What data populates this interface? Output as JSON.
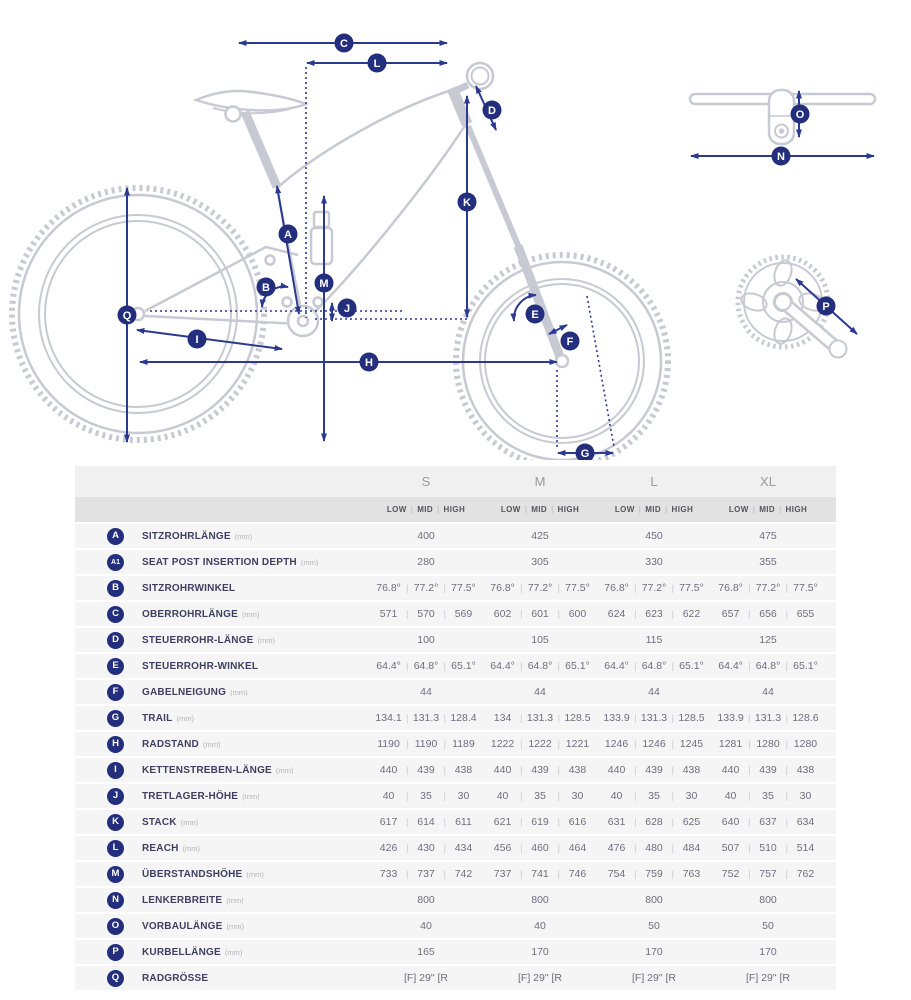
{
  "diagram": {
    "badge_letters": {
      "A": "A",
      "B": "B",
      "C": "C",
      "D": "D",
      "E": "E",
      "F": "F",
      "G": "G",
      "H": "H",
      "I": "I",
      "J": "J",
      "K": "K",
      "L": "L",
      "M": "M",
      "N": "N",
      "O": "O",
      "P": "P",
      "Q": "Q"
    },
    "colors": {
      "arrow": "#2b3990",
      "badge": "#232e7c",
      "frame": "#c7c9d3"
    }
  },
  "table": {
    "sizes": [
      "S",
      "M",
      "L",
      "XL"
    ],
    "sub_headers": [
      "LOW",
      "MID",
      "HIGH"
    ],
    "rows": [
      {
        "id": "A",
        "label": "SITZROHRLÄNGE",
        "unit": "(mm)",
        "values": [
          [
            "400"
          ],
          [
            "425"
          ],
          [
            "450"
          ],
          [
            "475"
          ]
        ]
      },
      {
        "id": "A1",
        "label": "SEAT POST INSERTION DEPTH",
        "unit": "(mm)",
        "values": [
          [
            "280"
          ],
          [
            "305"
          ],
          [
            "330"
          ],
          [
            "355"
          ]
        ]
      },
      {
        "id": "B",
        "label": "SITZROHRWINKEL",
        "unit": "",
        "values": [
          [
            "76.8°",
            "77.2°",
            "77.5°"
          ],
          [
            "76.8°",
            "77.2°",
            "77.5°"
          ],
          [
            "76.8°",
            "77.2°",
            "77.5°"
          ],
          [
            "76.8°",
            "77.2°",
            "77.5°"
          ]
        ]
      },
      {
        "id": "C",
        "label": "OBERROHRLÄNGE",
        "unit": "(mm)",
        "values": [
          [
            "571",
            "570",
            "569"
          ],
          [
            "602",
            "601",
            "600"
          ],
          [
            "624",
            "623",
            "622"
          ],
          [
            "657",
            "656",
            "655"
          ]
        ]
      },
      {
        "id": "D",
        "label": "STEUERROHR-LÄNGE",
        "unit": "(mm)",
        "values": [
          [
            "100"
          ],
          [
            "105"
          ],
          [
            "115"
          ],
          [
            "125"
          ]
        ]
      },
      {
        "id": "E",
        "label": "STEUERROHR-WINKEL",
        "unit": "",
        "values": [
          [
            "64.4°",
            "64.8°",
            "65.1°"
          ],
          [
            "64.4°",
            "64.8°",
            "65.1°"
          ],
          [
            "64.4°",
            "64.8°",
            "65.1°"
          ],
          [
            "64.4°",
            "64.8°",
            "65.1°"
          ]
        ]
      },
      {
        "id": "F",
        "label": "GABELNEIGUNG",
        "unit": "(mm)",
        "values": [
          [
            "44"
          ],
          [
            "44"
          ],
          [
            "44"
          ],
          [
            "44"
          ]
        ]
      },
      {
        "id": "G",
        "label": "TRAIL",
        "unit": "(mm)",
        "values": [
          [
            "134.1",
            "131.3",
            "128.4"
          ],
          [
            "134",
            "131.3",
            "128.5"
          ],
          [
            "133.9",
            "131.3",
            "128.5"
          ],
          [
            "133.9",
            "131.3",
            "128.6"
          ]
        ]
      },
      {
        "id": "H",
        "label": "RADSTAND",
        "unit": "(mm)",
        "values": [
          [
            "1190",
            "1190",
            "1189"
          ],
          [
            "1222",
            "1222",
            "1221"
          ],
          [
            "1246",
            "1246",
            "1245"
          ],
          [
            "1281",
            "1280",
            "1280"
          ]
        ]
      },
      {
        "id": "I",
        "label": "KETTENSTREBEN-LÄNGE",
        "unit": "(mm)",
        "values": [
          [
            "440",
            "439",
            "438"
          ],
          [
            "440",
            "439",
            "438"
          ],
          [
            "440",
            "439",
            "438"
          ],
          [
            "440",
            "439",
            "438"
          ]
        ]
      },
      {
        "id": "J",
        "label": "TRETLAGER-HÖHE",
        "unit": "(mm)",
        "values": [
          [
            "40",
            "35",
            "30"
          ],
          [
            "40",
            "35",
            "30"
          ],
          [
            "40",
            "35",
            "30"
          ],
          [
            "40",
            "35",
            "30"
          ]
        ]
      },
      {
        "id": "K",
        "label": "STACK",
        "unit": "(mm)",
        "values": [
          [
            "617",
            "614",
            "611"
          ],
          [
            "621",
            "619",
            "616"
          ],
          [
            "631",
            "628",
            "625"
          ],
          [
            "640",
            "637",
            "634"
          ]
        ]
      },
      {
        "id": "L",
        "label": "REACH",
        "unit": "(mm)",
        "values": [
          [
            "426",
            "430",
            "434"
          ],
          [
            "456",
            "460",
            "464"
          ],
          [
            "476",
            "480",
            "484"
          ],
          [
            "507",
            "510",
            "514"
          ]
        ]
      },
      {
        "id": "M",
        "label": "ÜBERSTANDSHÖHE",
        "unit": "(mm)",
        "values": [
          [
            "733",
            "737",
            "742"
          ],
          [
            "737",
            "741",
            "746"
          ],
          [
            "754",
            "759",
            "763"
          ],
          [
            "752",
            "757",
            "762"
          ]
        ]
      },
      {
        "id": "N",
        "label": "LENKERBREITE",
        "unit": "(mm)",
        "values": [
          [
            "800"
          ],
          [
            "800"
          ],
          [
            "800"
          ],
          [
            "800"
          ]
        ]
      },
      {
        "id": "O",
        "label": "VORBAULÄNGE",
        "unit": "(mm)",
        "values": [
          [
            "40"
          ],
          [
            "40"
          ],
          [
            "50"
          ],
          [
            "50"
          ]
        ]
      },
      {
        "id": "P",
        "label": "KURBELLÄNGE",
        "unit": "(mm)",
        "values": [
          [
            "165"
          ],
          [
            "170"
          ],
          [
            "170"
          ],
          [
            "170"
          ]
        ]
      },
      {
        "id": "Q",
        "label": "RADGRÖSSE",
        "unit": "",
        "values": [
          [
            "[F] 29\" [R"
          ],
          [
            "[F] 29\" [R"
          ],
          [
            "[F] 29\" [R"
          ],
          [
            "[F] 29\" [R"
          ]
        ]
      }
    ]
  }
}
